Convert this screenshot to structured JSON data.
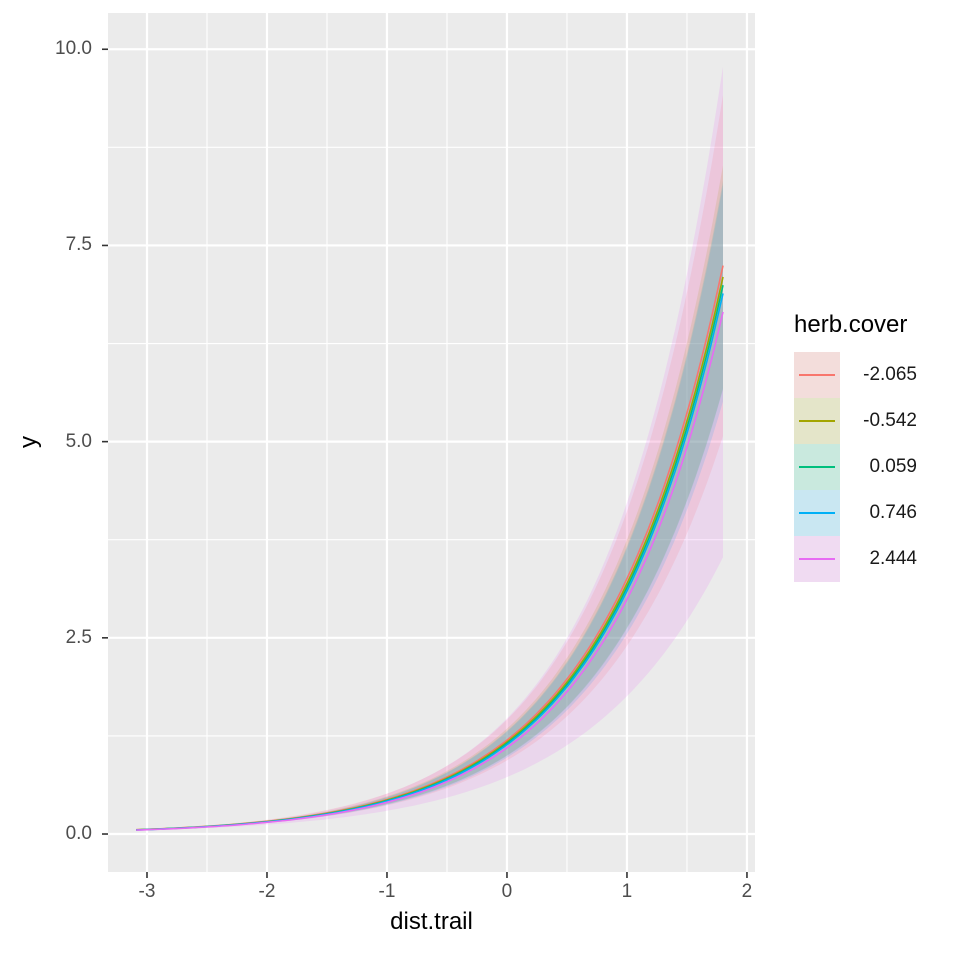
{
  "chart_data": {
    "type": "line",
    "title": "",
    "xlabel": "dist.trail",
    "ylabel": "y",
    "legend_title": "herb.cover",
    "legend_position": "right",
    "grid": true,
    "panel_bg": "#EBEBEB",
    "grid_color": "#FFFFFF",
    "tick_color": "#333333",
    "tick_label_color": "#4D4D4D",
    "xlim": [
      -3.325,
      2.067
    ],
    "ylim": [
      -0.484,
      10.462
    ],
    "x_ticks": {
      "values": [
        -3,
        -2,
        -1,
        0,
        1,
        2
      ],
      "labels": [
        "-3",
        "-2",
        "-1",
        "0",
        "1",
        "2"
      ],
      "minor": [
        -2.5,
        -1.5,
        -0.5,
        0.5,
        1.5
      ]
    },
    "y_ticks": {
      "values": [
        0,
        2.5,
        5,
        7.5,
        10
      ],
      "labels": [
        "0.0",
        "2.5",
        "5.0",
        "7.5",
        "10.0"
      ],
      "minor": [
        1.25,
        3.75,
        6.25,
        8.75
      ]
    },
    "x_domain": [
      -3.09,
      1.8
    ],
    "fill_opacity": 0.16,
    "line_width": 1.6,
    "legend_key_bg": "#F2F2F2",
    "model_note": "center y = exp(slope*x + intercept); ribbon half-width = y * rel_halfwidth * (0.25 + 0.75*u), u=(x-x_domain0)/(x_domain1-x_domain0)",
    "x_samples": [
      -3.09,
      -2.5,
      -2,
      -1.5,
      -1,
      -0.5,
      0,
      0.5,
      1,
      1.5,
      1.8
    ],
    "series": [
      {
        "name": "-2.065",
        "color": "#F8766D",
        "slope": 1,
        "intercept": 0.18,
        "rel_halfwidth": 0.3,
        "y_samples": [
          0.054,
          0.098,
          0.162,
          0.267,
          0.44,
          0.726,
          1.197,
          1.974,
          3.254,
          5.365,
          7.243
        ]
      },
      {
        "name": "-0.542",
        "color": "#A3A500",
        "slope": 1,
        "intercept": 0.16,
        "rel_halfwidth": 0.2,
        "y_samples": [
          0.053,
          0.096,
          0.159,
          0.262,
          0.432,
          0.712,
          1.174,
          1.935,
          3.19,
          5.259,
          7.099
        ]
      },
      {
        "name": "0.059",
        "color": "#00BF7D",
        "slope": 1,
        "intercept": 0.145,
        "rel_halfwidth": 0.19,
        "y_samples": [
          0.053,
          0.095,
          0.156,
          0.258,
          0.425,
          0.701,
          1.156,
          1.906,
          3.142,
          5.181,
          6.994
        ]
      },
      {
        "name": "0.746",
        "color": "#00B0F6",
        "slope": 1,
        "intercept": 0.13,
        "rel_halfwidth": 0.2,
        "y_samples": [
          0.052,
          0.093,
          0.154,
          0.254,
          0.419,
          0.691,
          1.139,
          1.878,
          3.096,
          5.104,
          6.89
        ]
      },
      {
        "name": "2.444",
        "color": "#E76BF3",
        "slope": 1,
        "intercept": 0.095,
        "rel_halfwidth": 0.47,
        "y_samples": [
          0.05,
          0.09,
          0.149,
          0.245,
          0.405,
          0.667,
          1.1,
          1.813,
          2.989,
          4.928,
          6.653
        ]
      }
    ]
  }
}
